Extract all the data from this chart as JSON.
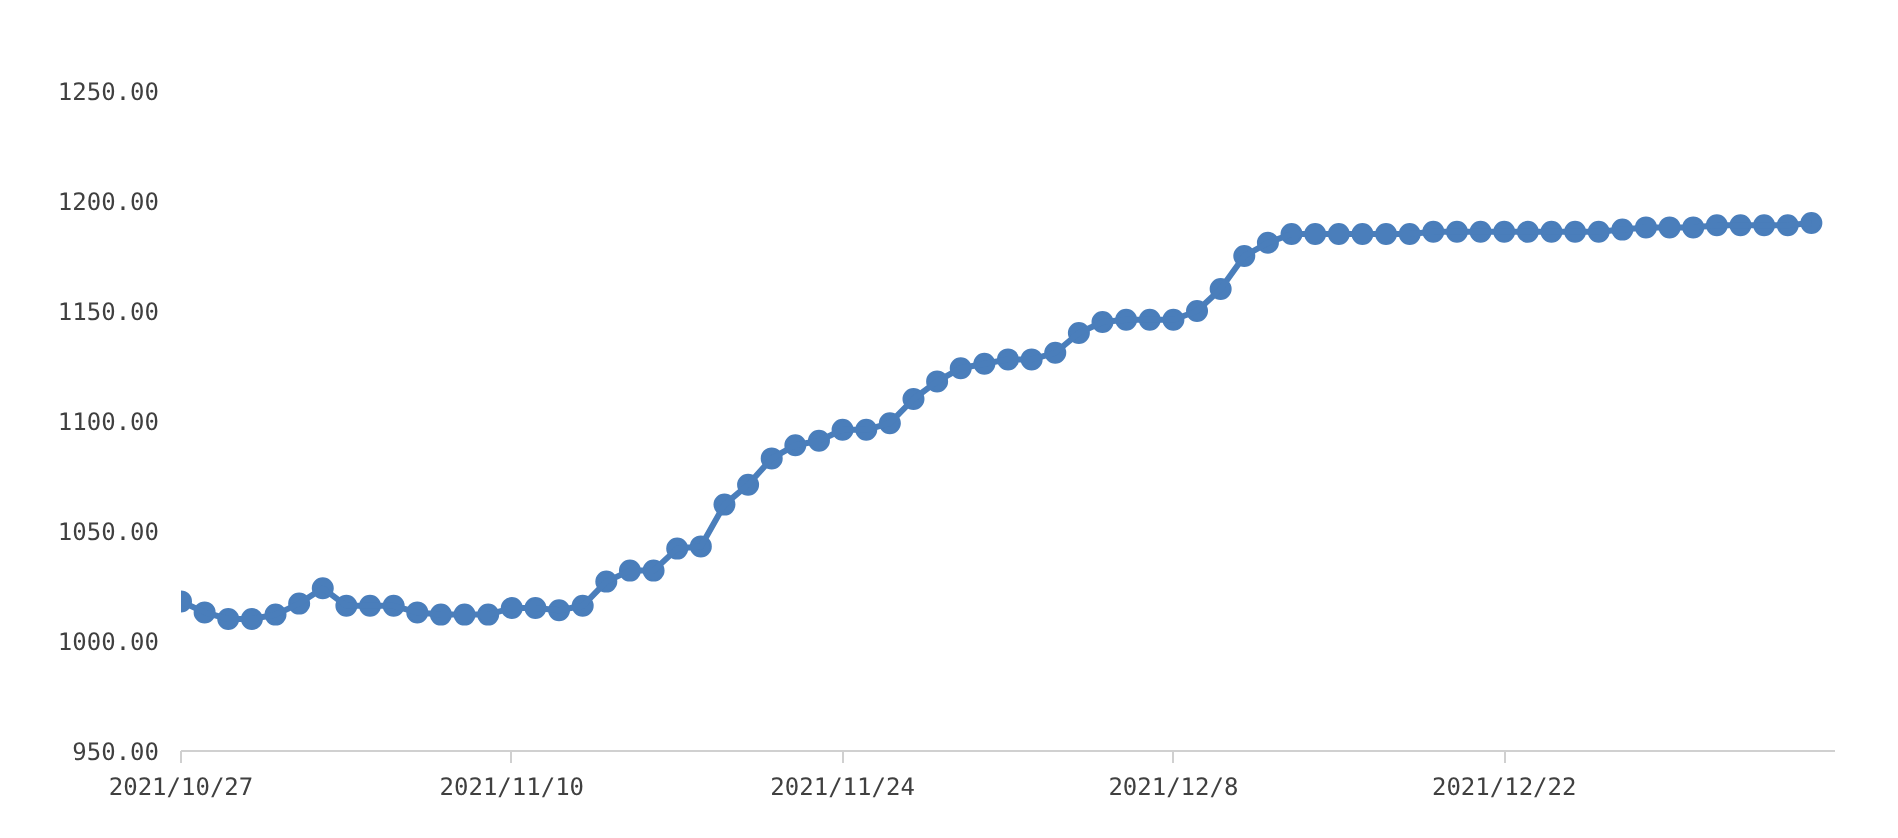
{
  "chart_data": {
    "type": "line",
    "x": [
      "2021-10-27",
      "2021-10-28",
      "2021-10-29",
      "2021-10-30",
      "2021-10-31",
      "2021-11-01",
      "2021-11-02",
      "2021-11-03",
      "2021-11-04",
      "2021-11-05",
      "2021-11-06",
      "2021-11-07",
      "2021-11-08",
      "2021-11-09",
      "2021-11-10",
      "2021-11-11",
      "2021-11-12",
      "2021-11-13",
      "2021-11-14",
      "2021-11-15",
      "2021-11-16",
      "2021-11-17",
      "2021-11-18",
      "2021-11-19",
      "2021-11-20",
      "2021-11-21",
      "2021-11-22",
      "2021-11-23",
      "2021-11-24",
      "2021-11-25",
      "2021-11-26",
      "2021-11-27",
      "2021-11-28",
      "2021-11-29",
      "2021-11-30",
      "2021-12-01",
      "2021-12-02",
      "2021-12-03",
      "2021-12-04",
      "2021-12-05",
      "2021-12-06",
      "2021-12-07",
      "2021-12-08",
      "2021-12-09",
      "2021-12-10",
      "2021-12-11",
      "2021-12-12",
      "2021-12-13",
      "2021-12-14",
      "2021-12-15",
      "2021-12-16",
      "2021-12-17",
      "2021-12-18",
      "2021-12-19",
      "2021-12-20",
      "2021-12-21",
      "2021-12-22",
      "2021-12-23",
      "2021-12-24",
      "2021-12-25",
      "2021-12-26",
      "2021-12-27",
      "2021-12-28",
      "2021-12-29",
      "2021-12-30",
      "2021-12-31",
      "2022-01-01",
      "2022-01-02",
      "2022-01-03",
      "2022-01-04"
    ],
    "series": [
      {
        "color": "#4a7ebb",
        "values": [
          1018,
          1013,
          1010,
          1010,
          1012,
          1017,
          1024,
          1016,
          1016,
          1016,
          1013,
          1012,
          1012,
          1012,
          1015,
          1015,
          1014,
          1016,
          1027,
          1032,
          1032,
          1042,
          1043,
          1062,
          1071,
          1083,
          1089,
          1091,
          1096,
          1096,
          1099,
          1110,
          1118,
          1124,
          1126,
          1128,
          1128,
          1131,
          1140,
          1145,
          1146,
          1146,
          1146,
          1150,
          1160,
          1175,
          1181,
          1185,
          1185,
          1185,
          1185,
          1185,
          1185,
          1186,
          1186,
          1186,
          1186,
          1186,
          1186,
          1186,
          1186,
          1187,
          1188,
          1188,
          1188,
          1189,
          1189,
          1189,
          1189,
          1190
        ]
      }
    ],
    "xlim": [
      "2021-10-27",
      "2022-01-05"
    ],
    "xticks": [
      {
        "value": "2021-10-27",
        "label": "2021/10/27"
      },
      {
        "value": "2021-11-10",
        "label": "2021/11/10"
      },
      {
        "value": "2021-11-24",
        "label": "2021/11/24"
      },
      {
        "value": "2021-12-08",
        "label": "2021/12/8"
      },
      {
        "value": "2021-12-22",
        "label": "2021/12/22"
      }
    ],
    "ylim": [
      950,
      1250
    ],
    "yticks": [
      {
        "value": 950,
        "label": "950.00"
      },
      {
        "value": 1000,
        "label": "1000.00"
      },
      {
        "value": 1050,
        "label": "1050.00"
      },
      {
        "value": 1100,
        "label": "1100.00"
      },
      {
        "value": 1150,
        "label": "1150.00"
      },
      {
        "value": 1200,
        "label": "1200.00"
      },
      {
        "value": 1250,
        "label": "1250.00"
      }
    ],
    "grid": false,
    "marker": "circle",
    "line_style": "solid"
  }
}
